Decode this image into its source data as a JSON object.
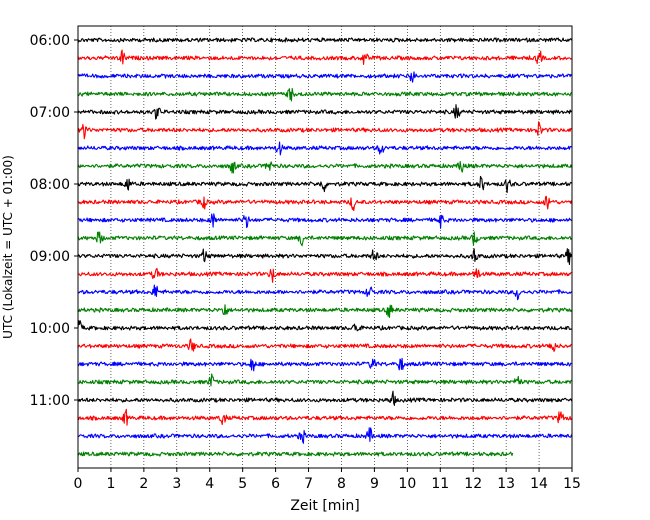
{
  "chart_data": {
    "type": "line",
    "title": "",
    "xlabel": "Zeit  [min]",
    "ylabel": "UTC (Lokalzeit = UTC + 01:00)",
    "xlim": [
      0,
      15
    ],
    "x_ticks": [
      "0",
      "1",
      "2",
      "3",
      "4",
      "5",
      "6",
      "7",
      "8",
      "9",
      "10",
      "11",
      "12",
      "13",
      "14",
      "15"
    ],
    "y_ticks": [
      "06:00",
      "07:00",
      "08:00",
      "09:00",
      "10:00",
      "11:00"
    ],
    "grid": "vertical-dotted",
    "row_interval_min": 15,
    "colors": [
      "#000000",
      "#ff0000",
      "#0000ff",
      "#008000"
    ],
    "rows": [
      {
        "time": "06:00",
        "color": "#000000",
        "end_min": 15,
        "events": []
      },
      {
        "time": "06:15",
        "color": "#ff0000",
        "end_min": 15,
        "events": [
          1.35,
          8.7,
          14.0
        ]
      },
      {
        "time": "06:30",
        "color": "#0000ff",
        "end_min": 15,
        "events": [
          10.15
        ]
      },
      {
        "time": "06:45",
        "color": "#008000",
        "end_min": 15,
        "events": [
          6.45
        ]
      },
      {
        "time": "07:00",
        "color": "#000000",
        "end_min": 15,
        "events": [
          2.4,
          11.5
        ]
      },
      {
        "time": "07:15",
        "color": "#ff0000",
        "end_min": 15,
        "events": [
          0.2,
          14.0
        ]
      },
      {
        "time": "07:30",
        "color": "#0000ff",
        "end_min": 15,
        "events": [
          6.1,
          9.2
        ]
      },
      {
        "time": "07:45",
        "color": "#008000",
        "end_min": 15,
        "events": [
          4.7,
          5.8,
          11.65
        ]
      },
      {
        "time": "08:00",
        "color": "#000000",
        "end_min": 15,
        "events": [
          1.5,
          7.45,
          12.25,
          13.05
        ]
      },
      {
        "time": "08:15",
        "color": "#ff0000",
        "end_min": 15,
        "events": [
          3.8,
          8.35,
          14.25
        ]
      },
      {
        "time": "08:30",
        "color": "#0000ff",
        "end_min": 15,
        "events": [
          4.1,
          5.1,
          11.0
        ]
      },
      {
        "time": "08:45",
        "color": "#008000",
        "end_min": 15,
        "events": [
          0.65,
          6.8,
          12.05
        ]
      },
      {
        "time": "09:00",
        "color": "#000000",
        "end_min": 15,
        "events": [
          3.85,
          9.0,
          12.05,
          14.9
        ]
      },
      {
        "time": "09:15",
        "color": "#ff0000",
        "end_min": 15,
        "events": [
          2.35,
          5.9,
          12.1
        ]
      },
      {
        "time": "09:30",
        "color": "#0000ff",
        "end_min": 15,
        "events": [
          2.35,
          8.85,
          13.35
        ]
      },
      {
        "time": "09:45",
        "color": "#008000",
        "end_min": 15,
        "events": [
          4.45,
          9.45
        ]
      },
      {
        "time": "10:00",
        "color": "#000000",
        "end_min": 15,
        "events": [
          0.05,
          8.45
        ]
      },
      {
        "time": "10:15",
        "color": "#ff0000",
        "end_min": 15,
        "events": [
          3.45,
          14.4
        ]
      },
      {
        "time": "10:30",
        "color": "#0000ff",
        "end_min": 15,
        "events": [
          5.3,
          8.95,
          9.8
        ]
      },
      {
        "time": "10:45",
        "color": "#008000",
        "end_min": 15,
        "events": [
          4.05,
          13.35
        ]
      },
      {
        "time": "11:00",
        "color": "#000000",
        "end_min": 15,
        "events": [
          9.55
        ]
      },
      {
        "time": "11:15",
        "color": "#ff0000",
        "end_min": 15,
        "events": [
          1.45,
          4.4,
          14.65
        ]
      },
      {
        "time": "11:30",
        "color": "#0000ff",
        "end_min": 15,
        "events": [
          6.8,
          8.85
        ]
      },
      {
        "time": "11:45",
        "color": "#008000",
        "end_min": 13.2,
        "events": []
      }
    ]
  }
}
